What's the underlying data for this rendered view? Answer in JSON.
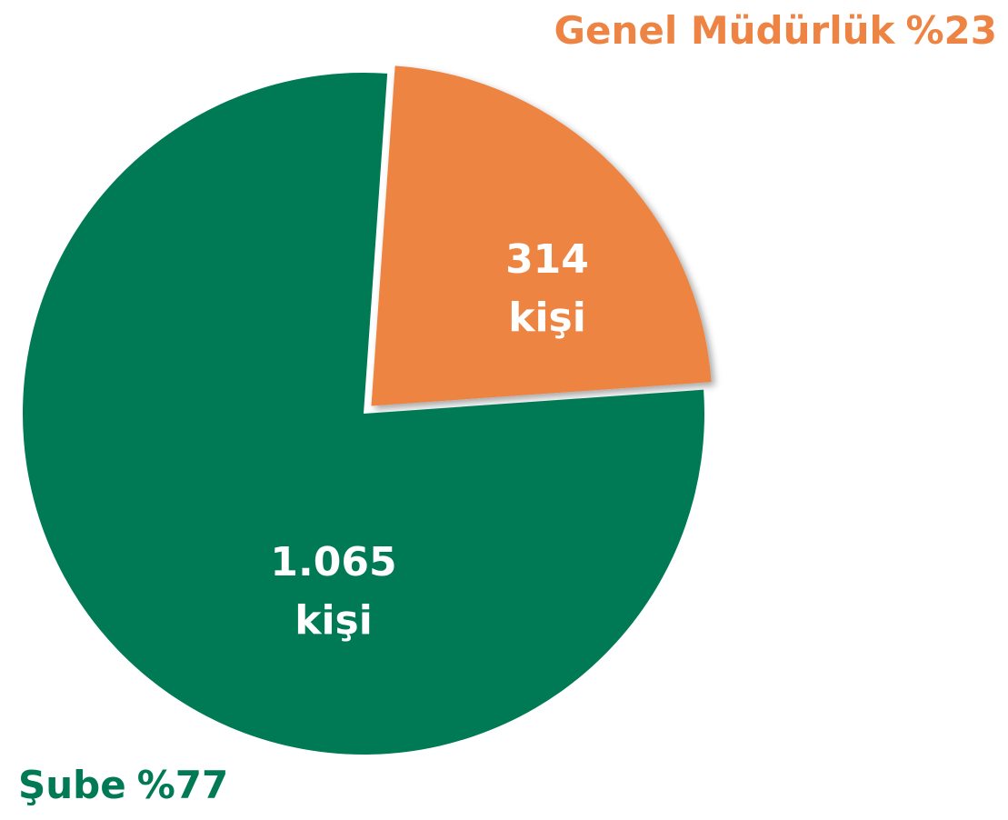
{
  "chart_data": {
    "type": "pie",
    "categories": [
      "Genel Müdürlük",
      "Şube"
    ],
    "values": [
      314,
      1065
    ],
    "value_labels": [
      "314",
      "1.065"
    ],
    "unit": "kişi",
    "percent_labels": [
      "%23",
      "%77"
    ],
    "colors": [
      "#ee8443",
      "#007a55"
    ]
  }
}
